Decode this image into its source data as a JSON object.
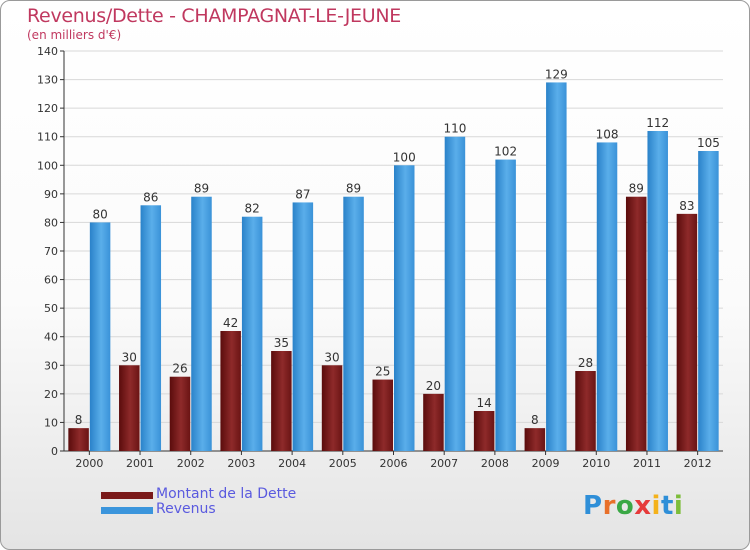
{
  "title": "Revenus/Dette - CHAMPAGNAT-LE-JEUNE",
  "subtitle": "(en milliers d'€)",
  "colors": {
    "debt": "#7a1a1a",
    "revenue": "#3b95dc",
    "axis": "#333333",
    "grid": "#d8d8d8"
  },
  "legend": {
    "debt_label": "Montant de la Dette",
    "revenue_label": "Revenus"
  },
  "logo": {
    "letters": [
      "P",
      "r",
      "o",
      "x",
      "i",
      "t",
      "i"
    ],
    "colors": [
      "#2f8fd8",
      "#e8702a",
      "#3aa845",
      "#e63a3a",
      "#f4b21b",
      "#2f8fd8",
      "#7dbd3a"
    ]
  },
  "chart_data": {
    "type": "bar",
    "categories": [
      "2000",
      "2001",
      "2002",
      "2003",
      "2004",
      "2005",
      "2006",
      "2007",
      "2008",
      "2009",
      "2010",
      "2011",
      "2012"
    ],
    "series": [
      {
        "name": "Montant de la Dette",
        "values": [
          8,
          30,
          26,
          42,
          35,
          30,
          25,
          20,
          14,
          8,
          28,
          89,
          83
        ]
      },
      {
        "name": "Revenus",
        "values": [
          80,
          86,
          89,
          82,
          87,
          89,
          100,
          110,
          102,
          129,
          108,
          112,
          105
        ]
      }
    ],
    "ylim": [
      0,
      140
    ],
    "yticks": [
      0,
      10,
      20,
      30,
      40,
      50,
      60,
      70,
      80,
      90,
      100,
      110,
      120,
      130,
      140
    ],
    "grid": true,
    "legend": "bottom-left"
  }
}
